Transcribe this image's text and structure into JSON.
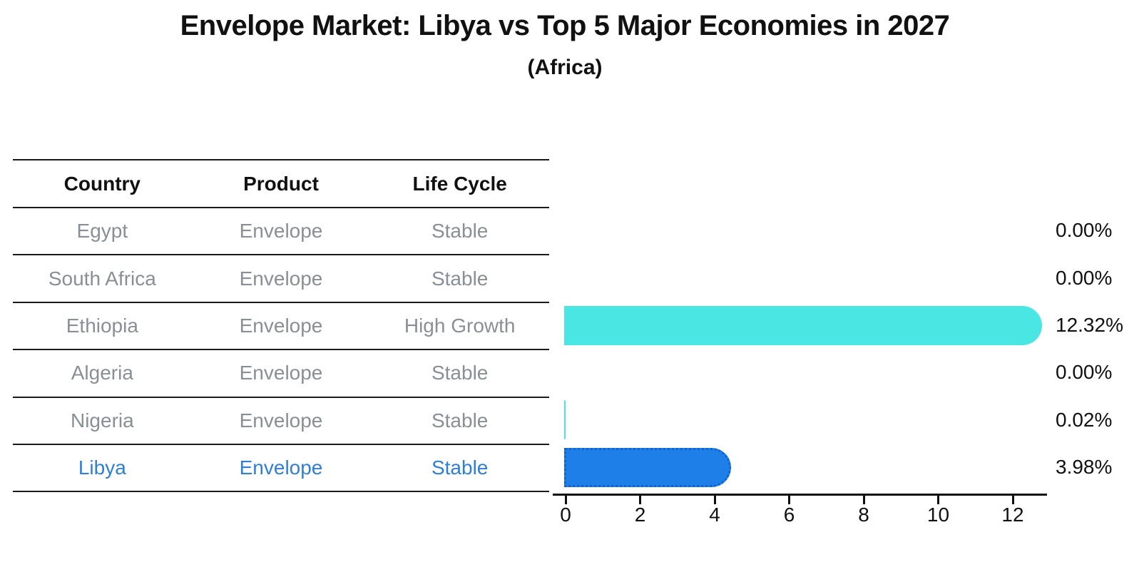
{
  "title": "Envelope Market: Libya vs Top 5 Major Economies in 2027",
  "subtitle": "(Africa)",
  "table": {
    "headers": [
      "Country",
      "Product",
      "Life Cycle"
    ],
    "rows": [
      {
        "country": "Egypt",
        "product": "Envelope",
        "life_cycle": "Stable",
        "highlight": false
      },
      {
        "country": "South Africa",
        "product": "Envelope",
        "life_cycle": "Stable",
        "highlight": false
      },
      {
        "country": "Ethiopia",
        "product": "Envelope",
        "life_cycle": "High Growth",
        "highlight": false
      },
      {
        "country": "Algeria",
        "product": "Envelope",
        "life_cycle": "Stable",
        "highlight": false
      },
      {
        "country": "Nigeria",
        "product": "Envelope",
        "life_cycle": "Stable",
        "highlight": false
      },
      {
        "country": "Libya",
        "product": "Envelope",
        "life_cycle": "Stable",
        "highlight": true
      }
    ]
  },
  "chart_data": {
    "type": "bar",
    "orientation": "horizontal",
    "title": "Envelope Market: Libya vs Top 5 Major Economies in 2027",
    "subtitle": "(Africa)",
    "categories": [
      "Egypt",
      "South Africa",
      "Ethiopia",
      "Algeria",
      "Nigeria",
      "Libya"
    ],
    "values": [
      0.0,
      0.0,
      12.32,
      0.0,
      0.02,
      3.98
    ],
    "value_labels": [
      "0.00%",
      "0.00%",
      "12.32%",
      "0.00%",
      "0.02%",
      "3.98%"
    ],
    "unit": "percent",
    "x_ticks": [
      0,
      2,
      4,
      6,
      8,
      10,
      12
    ],
    "xlim": [
      0,
      12.9
    ],
    "grid": false,
    "legend": "none",
    "bar_style": {
      "default_color": "#4AE6E4",
      "highlight_color": "#1E7FE8",
      "highlight_index": 5,
      "rounded_right_cap": true,
      "highlight_border": "dotted"
    }
  },
  "colors": {
    "background": "#ffffff",
    "text": "#111111",
    "muted_text": "#8a8f96",
    "highlight_text": "#2E7FD6",
    "bar_default": "#4AE6E4",
    "bar_highlight": "#1E7FE8",
    "axis": "#111111"
  }
}
